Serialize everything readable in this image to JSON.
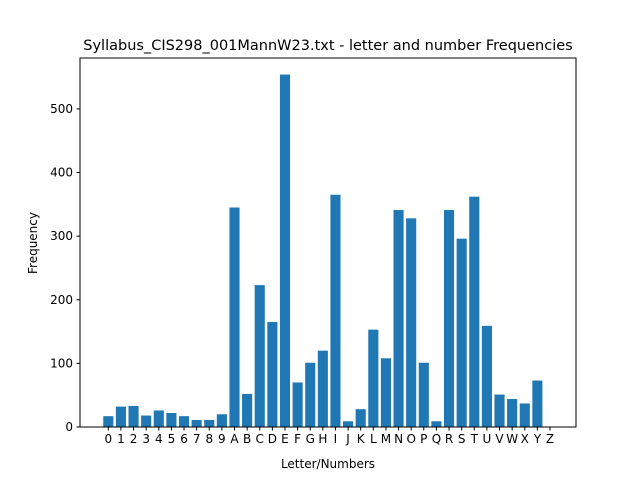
{
  "chart_data": {
    "type": "bar",
    "title": "Syllabus_CIS298_001MannW23.txt - letter and number Frequencies",
    "xlabel": "Letter/Numbers",
    "ylabel": "Frequency",
    "ylim": [
      0,
      580
    ],
    "yticks": [
      0,
      100,
      200,
      300,
      400,
      500
    ],
    "grid": false,
    "bar_color": "#1f77b4",
    "categories": [
      "0",
      "1",
      "2",
      "3",
      "4",
      "5",
      "6",
      "7",
      "8",
      "9",
      "A",
      "B",
      "C",
      "D",
      "E",
      "F",
      "G",
      "H",
      "I",
      "J",
      "K",
      "L",
      "M",
      "N",
      "O",
      "P",
      "Q",
      "R",
      "S",
      "T",
      "U",
      "V",
      "W",
      "X",
      "Y",
      "Z"
    ],
    "values": [
      17,
      32,
      33,
      18,
      26,
      22,
      17,
      11,
      11,
      20,
      345,
      52,
      223,
      165,
      554,
      70,
      101,
      120,
      365,
      9,
      28,
      153,
      108,
      341,
      328,
      101,
      9,
      341,
      296,
      362,
      159,
      51,
      44,
      37,
      73,
      0
    ]
  }
}
